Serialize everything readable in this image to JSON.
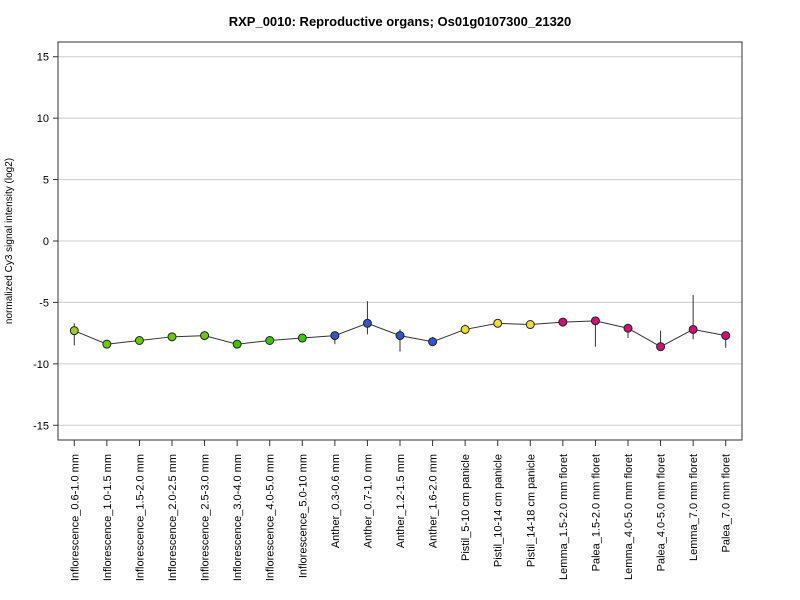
{
  "chart_data": {
    "type": "line",
    "title": "RXP_0010: Reproductive organs; Os01g0107300_21320",
    "xlabel": "",
    "ylabel": "normalized Cy3 signal intensity (log2)",
    "ylim": [
      -16.2,
      16.2
    ],
    "yticks": [
      15,
      10,
      5,
      0,
      -5,
      -10,
      -15
    ],
    "grid": true,
    "categories": [
      "Inflorescence_0.6-1.0 mm",
      "Inflorescence_1.0-1.5 mm",
      "Inflorescence_1.5-2.0 mm",
      "Inflorescence_2.0-2.5 mm",
      "Inflorescence_2.5-3.0 mm",
      "Inflorescence_3.0-4.0 mm",
      "Inflorescence_4.0-5.0 mm",
      "Inflorescence_5.0-10 mm",
      "Anther_0.3-0.6 mm",
      "Anther_0.7-1.0 mm",
      "Anther_1.2-1.5 mm",
      "Anther_1.6-2.0 mm",
      "Pistil_5-10 cm panicle",
      "Pistil_10-14 cm panicle",
      "Pistil_14-18 cm panicle",
      "Lemma_1.5-2.0 mm floret",
      "Palea_1.5-2.0 mm floret",
      "Lemma_4.0-5.0 mm floret",
      "Palea_4.0-5.0 mm floret",
      "Lemma_7.0 mm floret",
      "Palea_7.0 mm floret"
    ],
    "values": [
      -7.3,
      -8.4,
      -8.1,
      -7.8,
      -7.7,
      -8.4,
      -8.1,
      -7.9,
      -7.7,
      -6.7,
      -7.7,
      -8.2,
      -7.2,
      -6.7,
      -6.8,
      -6.6,
      -6.5,
      -7.1,
      -8.6,
      -7.2,
      -7.7
    ],
    "error_low": [
      -8.5,
      -8.6,
      -8.4,
      -7.9,
      -8.0,
      -8.5,
      -8.2,
      -8.0,
      -8.4,
      -7.6,
      -9.0,
      -8.3,
      -7.3,
      -6.8,
      -7.1,
      -6.7,
      -8.6,
      -7.9,
      -8.7,
      -8.0,
      -8.7
    ],
    "error_high": [
      -6.7,
      -8.1,
      -7.8,
      -7.7,
      -7.4,
      -8.3,
      -8.0,
      -7.8,
      -7.4,
      -4.9,
      -7.2,
      -7.8,
      -6.8,
      -6.6,
      -6.5,
      -6.5,
      -6.4,
      -6.9,
      -7.3,
      -4.4,
      -7.5
    ],
    "point_colors": [
      "#9ACD32",
      "#66CC00",
      "#66CC00",
      "#66CC00",
      "#66CC00",
      "#33CC00",
      "#33CC00",
      "#33CC00",
      "#3355CC",
      "#3355CC",
      "#3355CC",
      "#3355CC",
      "#EEDD33",
      "#EEDD33",
      "#EEDD33",
      "#CC1177",
      "#CC1177",
      "#CC1177",
      "#CC1177",
      "#CC1177",
      "#CC1177"
    ],
    "line_color": "#333333"
  }
}
